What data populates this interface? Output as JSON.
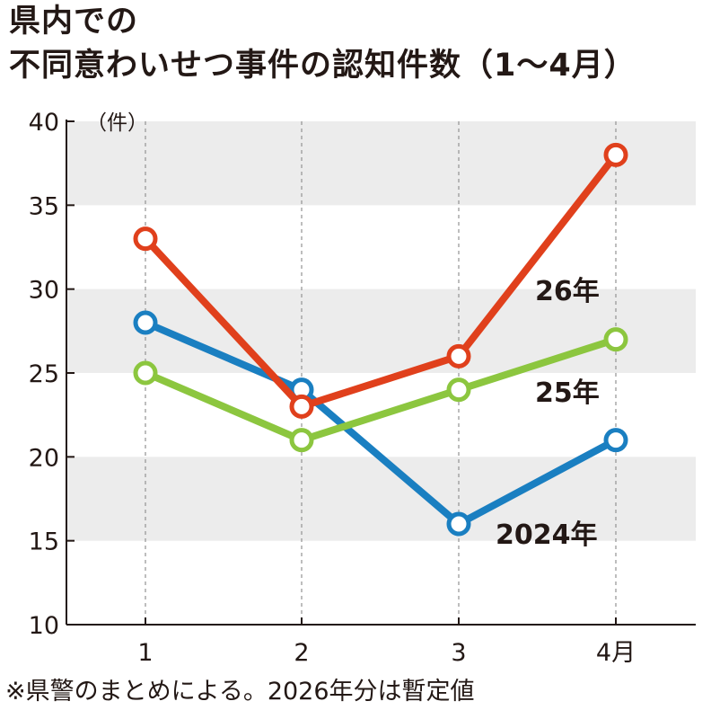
{
  "title_line1": "県内での",
  "title_line2": "不同意わいせつ事件の認知件数（1〜4月）",
  "note": "※県警のまとめによる。2026年分は暫定値",
  "chart_data": {
    "type": "line",
    "title": "県内での 不同意わいせつ事件の認知件数（1〜4月）",
    "y_unit": "（件）",
    "categories": [
      "1",
      "2",
      "3",
      "4月"
    ],
    "ylim": [
      10,
      40
    ],
    "yticks": [
      "40",
      "35",
      "30",
      "25",
      "20",
      "15",
      "10"
    ],
    "grid": "alternating horizontal bands, dashed vertical lines",
    "series": [
      {
        "name": "2024年",
        "color": "#1a7fc1",
        "values": [
          28,
          24,
          16,
          21
        ]
      },
      {
        "name": "25年",
        "color": "#8cc63f",
        "values": [
          25,
          21,
          24,
          27
        ]
      },
      {
        "name": "26年",
        "color": "#e0401c",
        "values": [
          33,
          23,
          26,
          38
        ]
      }
    ]
  }
}
